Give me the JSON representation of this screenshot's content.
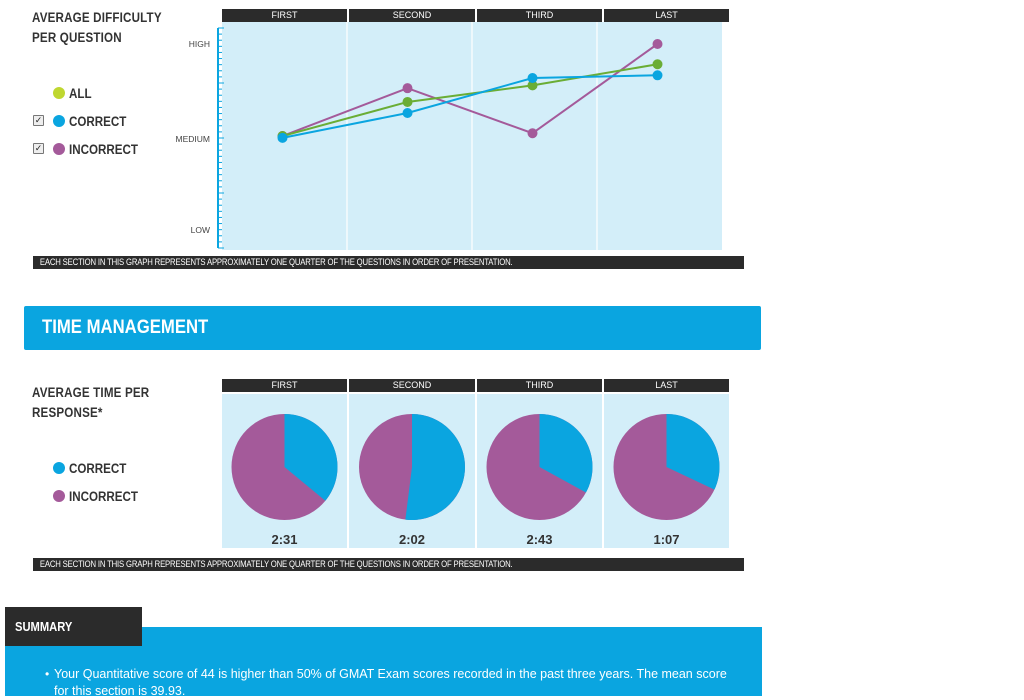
{
  "difficulty": {
    "title_line1": "AVERAGE DIFFICULTY",
    "title_line2": "PER QUESTION",
    "legend": [
      {
        "label": "ALL",
        "color": "#8dc63f",
        "checkbox": false
      },
      {
        "label": "CORRECT",
        "color": "#0aa5e0",
        "checkbox": true
      },
      {
        "label": "INCORRECT",
        "color": "#a45a9a",
        "checkbox": true
      }
    ],
    "footnote": "EACH SECTION IN THIS GRAPH REPRESENTS APPROXIMATELY ONE QUARTER OF THE QUESTIONS IN ORDER OF PRESENTATION."
  },
  "time_management": {
    "banner_title": "TIME MANAGEMENT",
    "title_line1": "AVERAGE TIME PER",
    "title_line2": "RESPONSE*",
    "legend": [
      {
        "label": "CORRECT",
        "color": "#0aa5e0"
      },
      {
        "label": "INCORRECT",
        "color": "#a45a9a"
      }
    ],
    "footnote": "EACH SECTION IN THIS GRAPH REPRESENTS APPROXIMATELY ONE QUARTER OF THE QUESTIONS IN ORDER OF PRESENTATION."
  },
  "summary": {
    "tab_label": "SUMMARY",
    "bullet": "Your Quantitative score of 44 is higher than 50% of GMAT Exam scores recorded in the past three years. The mean score for this section is 39.93."
  },
  "chart_data": [
    {
      "type": "line",
      "categories": [
        "FIRST",
        "SECOND",
        "THIRD",
        "LAST"
      ],
      "y_tick_labels": [
        "LOW",
        "MEDIUM",
        "HIGH"
      ],
      "ylim": [
        0,
        2
      ],
      "grid": "vertical section dividers",
      "legend_placement": "left",
      "series": [
        {
          "name": "ALL",
          "color": "#6aad35",
          "values": [
            1.0,
            1.37,
            1.55,
            1.78
          ]
        },
        {
          "name": "CORRECT",
          "color": "#0aa5e0",
          "values": [
            0.98,
            1.25,
            1.63,
            1.66
          ]
        },
        {
          "name": "INCORRECT",
          "color": "#a45a9a",
          "values": [
            1.0,
            1.52,
            1.03,
            2.0
          ]
        }
      ]
    },
    {
      "type": "pie",
      "categories": [
        "FIRST",
        "SECOND",
        "THIRD",
        "LAST"
      ],
      "legend_placement": "left",
      "series_colors": {
        "correct": "#0aa5e0",
        "incorrect": "#a45a9a"
      },
      "pies": [
        {
          "section": "FIRST",
          "correct_fraction": 0.36,
          "incorrect_fraction": 0.64,
          "time": "2:31"
        },
        {
          "section": "SECOND",
          "correct_fraction": 0.52,
          "incorrect_fraction": 0.48,
          "time": "2:02"
        },
        {
          "section": "THIRD",
          "correct_fraction": 0.33,
          "incorrect_fraction": 0.67,
          "time": "2:43"
        },
        {
          "section": "LAST",
          "correct_fraction": 0.32,
          "incorrect_fraction": 0.68,
          "time": "1:07"
        }
      ]
    }
  ]
}
